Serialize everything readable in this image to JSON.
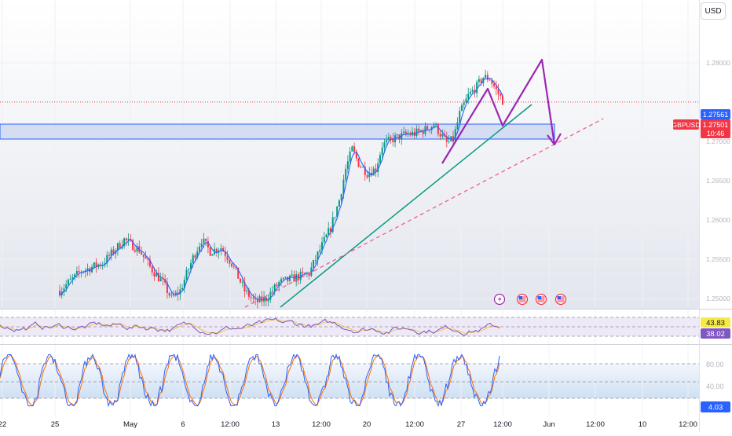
{
  "currency_button": "USD",
  "colors": {
    "up": "#089981",
    "down": "#f23645",
    "ma": "#2962ff",
    "rsi": "#7e57c2",
    "rsi_ma": "#f7c431",
    "stoch_k": "#2962ff",
    "stoch_d": "#ff6d00",
    "trend": "#089981",
    "dashed_trend": "#f0608a",
    "projection": "#9c27b0",
    "zone_border": "#2962ff",
    "price_line": "#f23645"
  },
  "price_axis": {
    "ticks": [
      "1.28000",
      "1.27000",
      "1.26500",
      "1.26000",
      "1.25500",
      "1.25000"
    ],
    "last_price_label": "1.27561",
    "symbol_label": "GBPUSD",
    "current_price_label": "1.27501",
    "countdown_label": "10:46"
  },
  "time_axis": {
    "ticks": [
      "22",
      "25",
      "May",
      "6",
      "12:00",
      "13",
      "12:00",
      "20",
      "12:00",
      "27",
      "12:00",
      "Jun",
      "12:00",
      "10",
      "12:00"
    ]
  },
  "event_icons": [
    "lightning-icon",
    "us-flag-icon",
    "us-flag-icon",
    "us-flag-icon"
  ],
  "rsi_panel": {
    "value_label": "43.83",
    "ma_label": "38.02"
  },
  "stoch_panel": {
    "upper_label": "80.00",
    "mid_label": "40.00",
    "value_label": "4.03"
  },
  "chart_data": {
    "type": "candlestick",
    "symbol": "GBPUSD",
    "price_range": [
      1.2475,
      1.2835
    ],
    "support_zone": [
      1.2703,
      1.2722
    ],
    "current_price": 1.27501,
    "last_price": 1.27561,
    "rsi_range": [
      0,
      100
    ],
    "rsi_last": 43.83,
    "rsi_ma_last": 38.02,
    "stoch_levels": [
      80,
      40
    ],
    "stoch_last": 4.03,
    "price_path": [
      [
        0,
        1.251
      ],
      [
        10,
        1.2535
      ],
      [
        20,
        1.2545
      ],
      [
        30,
        1.2575
      ],
      [
        37,
        1.2562
      ],
      [
        42,
        1.254
      ],
      [
        48,
        1.252
      ],
      [
        52,
        1.25
      ],
      [
        56,
        1.251
      ],
      [
        62,
        1.2552
      ],
      [
        66,
        1.2575
      ],
      [
        70,
        1.256
      ],
      [
        75,
        1.2565
      ],
      [
        80,
        1.2545
      ],
      [
        86,
        1.251
      ],
      [
        91,
        1.2495
      ],
      [
        96,
        1.25
      ],
      [
        102,
        1.252
      ],
      [
        110,
        1.2527
      ],
      [
        116,
        1.2532
      ],
      [
        121,
        1.2562
      ],
      [
        126,
        1.259
      ],
      [
        130,
        1.2625
      ],
      [
        133,
        1.2665
      ],
      [
        136,
        1.269
      ],
      [
        139,
        1.2672
      ],
      [
        143,
        1.266
      ],
      [
        147,
        1.2665
      ],
      [
        150,
        1.2695
      ],
      [
        155,
        1.2703
      ],
      [
        160,
        1.2708
      ],
      [
        165,
        1.271
      ],
      [
        170,
        1.2715
      ],
      [
        174,
        1.2722
      ],
      [
        177,
        1.271
      ],
      [
        180,
        1.2698
      ],
      [
        183,
        1.2702
      ],
      [
        186,
        1.2735
      ],
      [
        190,
        1.2758
      ],
      [
        194,
        1.277
      ],
      [
        197,
        1.2782
      ],
      [
        200,
        1.278
      ],
      [
        203,
        1.2765
      ],
      [
        206,
        1.2752
      ]
    ]
  }
}
